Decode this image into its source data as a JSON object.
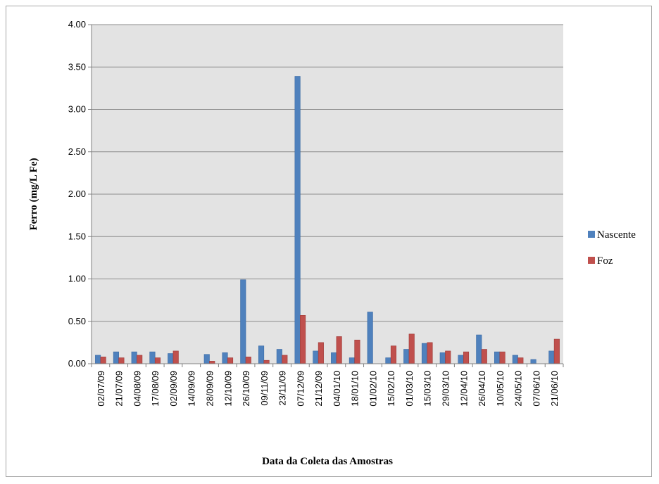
{
  "chart_data": {
    "type": "bar",
    "title": "",
    "xlabel": "Data da Coleta das Amostras",
    "ylabel": "Ferro (mg/L Fe)",
    "ylim": [
      0,
      4
    ],
    "yticks": [
      "0.00",
      "0.50",
      "1.00",
      "1.50",
      "2.00",
      "2.50",
      "3.00",
      "3.50",
      "4.00"
    ],
    "ytick_values": [
      0,
      0.5,
      1.0,
      1.5,
      2.0,
      2.5,
      3.0,
      3.5,
      4.0
    ],
    "grid": "horizontal",
    "legend_position": "right",
    "categories": [
      "02/07/09",
      "21/07/09",
      "04/08/09",
      "17/08/09",
      "02/09/09",
      "14/09/09",
      "28/09/09",
      "12/10/09",
      "26/10/09",
      "09/11/09",
      "23/11/09",
      "07/12/09",
      "21/12/09",
      "04/01/10",
      "18/01/10",
      "01/02/10",
      "15/02/10",
      "01/03/10",
      "15/03/10",
      "29/03/10",
      "12/04/10",
      "26/04/10",
      "10/05/10",
      "24/05/10",
      "07/06/10",
      "21/06/10"
    ],
    "series": [
      {
        "name": "Nascente",
        "color": "#4f81bd",
        "values": [
          0.1,
          0.14,
          0.14,
          0.14,
          0.12,
          0,
          0.11,
          0.13,
          0.99,
          0.21,
          0.17,
          3.39,
          0.15,
          0.13,
          0.07,
          0.61,
          0.07,
          0.17,
          0.24,
          0.13,
          0.1,
          0.34,
          0.14,
          0.1,
          0.05,
          0.15
        ]
      },
      {
        "name": "Foz",
        "color": "#c0504d",
        "values": [
          0.08,
          0.07,
          0.1,
          0.07,
          0.15,
          0,
          0.03,
          0.07,
          0.08,
          0.04,
          0.1,
          0.57,
          0.25,
          0.32,
          0.28,
          0,
          0.21,
          0.35,
          0.25,
          0.15,
          0.14,
          0.17,
          0.14,
          0.07,
          0,
          0.29
        ]
      }
    ],
    "plot_background": "#e3e3e3",
    "gridline_color": "#8c8c8c"
  }
}
